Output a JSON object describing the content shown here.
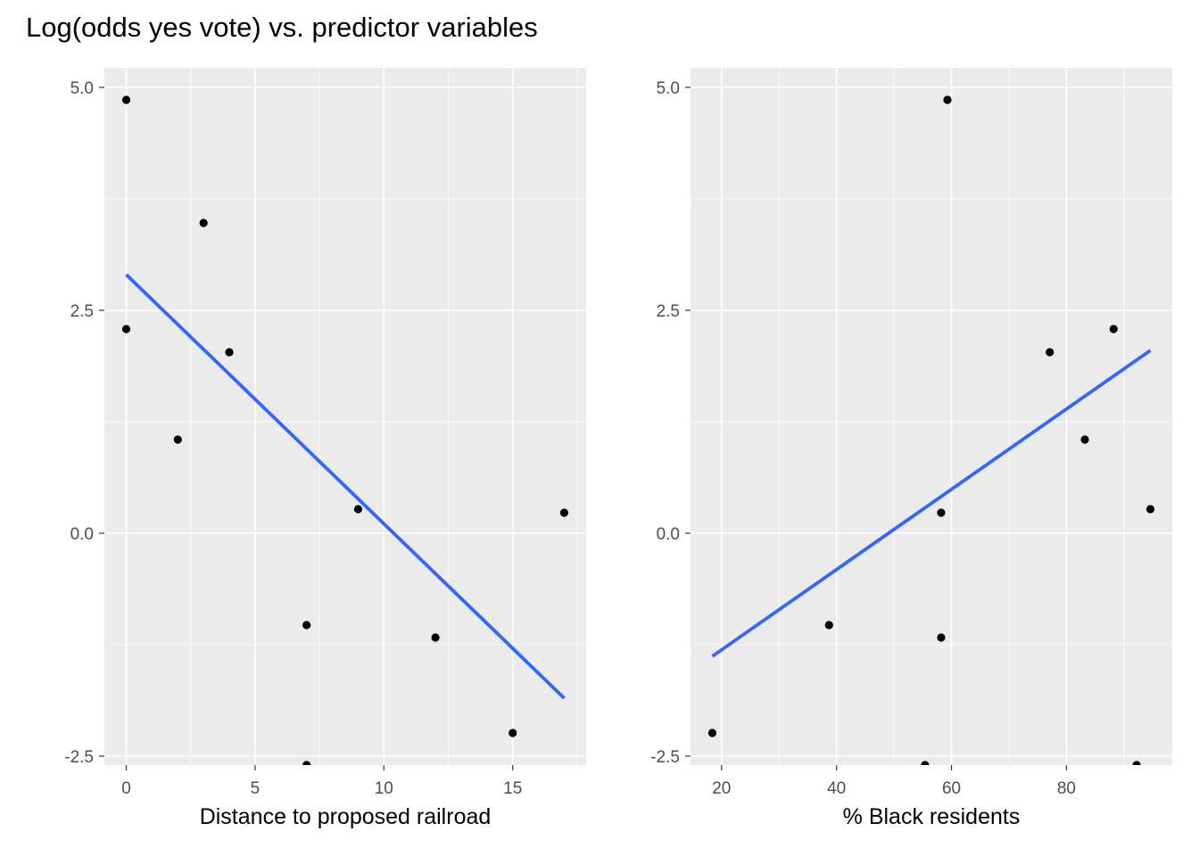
{
  "title": "Log(odds yes vote) vs. predictor variables",
  "colors": {
    "panel_background": "#ebebeb",
    "grid": "#ffffff",
    "points": "#000000",
    "fit_line": "#3366ff",
    "tick_text": "#4d4d4d"
  },
  "chart_data": [
    {
      "type": "scatter",
      "title": "",
      "xlabel": "Distance to proposed railroad",
      "ylabel": "",
      "xlim": [
        -0.85,
        17.85
      ],
      "ylim": [
        -2.6,
        5.22
      ],
      "x_ticks": [
        0,
        5,
        10,
        15
      ],
      "x_tick_labels": [
        "0",
        "5",
        "10",
        "15"
      ],
      "y_ticks": [
        -2.5,
        0,
        2.5,
        5
      ],
      "y_tick_labels": [
        "-2.5",
        "0.0",
        "2.5",
        "5.0"
      ],
      "grid": true,
      "legend": "none",
      "points": [
        {
          "x": 0,
          "y": 4.86
        },
        {
          "x": 0,
          "y": 2.29
        },
        {
          "x": 2,
          "y": 1.05
        },
        {
          "x": 3,
          "y": 3.48
        },
        {
          "x": 4,
          "y": 2.03
        },
        {
          "x": 7,
          "y": -1.03
        },
        {
          "x": 7,
          "y": -2.6
        },
        {
          "x": 9,
          "y": 0.27
        },
        {
          "x": 12,
          "y": -1.17
        },
        {
          "x": 15,
          "y": -2.24
        },
        {
          "x": 17,
          "y": 0.23
        }
      ],
      "fit_line": [
        {
          "x": 0,
          "y": 2.9
        },
        {
          "x": 17,
          "y": -1.85
        }
      ]
    },
    {
      "type": "scatter",
      "title": "",
      "xlabel": "% Black residents",
      "ylabel": "",
      "xlim": [
        14.6,
        98.4
      ],
      "ylim": [
        -2.6,
        5.22
      ],
      "x_ticks": [
        20,
        40,
        60,
        80
      ],
      "x_tick_labels": [
        "20",
        "40",
        "60",
        "80"
      ],
      "y_ticks": [
        -2.5,
        0,
        2.5,
        5
      ],
      "y_tick_labels": [
        "-2.5",
        "0.0",
        "2.5",
        "5.0"
      ],
      "grid": true,
      "legend": "none",
      "points": [
        {
          "x": 18.4,
          "y": -2.24
        },
        {
          "x": 38.7,
          "y": -1.03
        },
        {
          "x": 55.4,
          "y": -2.6
        },
        {
          "x": 58.2,
          "y": 0.23
        },
        {
          "x": 58.2,
          "y": -1.17
        },
        {
          "x": 59.3,
          "y": 4.86
        },
        {
          "x": 77.1,
          "y": 2.03
        },
        {
          "x": 83.2,
          "y": 1.05
        },
        {
          "x": 88.2,
          "y": 2.29
        },
        {
          "x": 92.2,
          "y": -2.6
        },
        {
          "x": 94.6,
          "y": 0.27
        }
      ],
      "fit_line": [
        {
          "x": 18.4,
          "y": -1.38
        },
        {
          "x": 94.6,
          "y": 2.05
        }
      ]
    }
  ]
}
